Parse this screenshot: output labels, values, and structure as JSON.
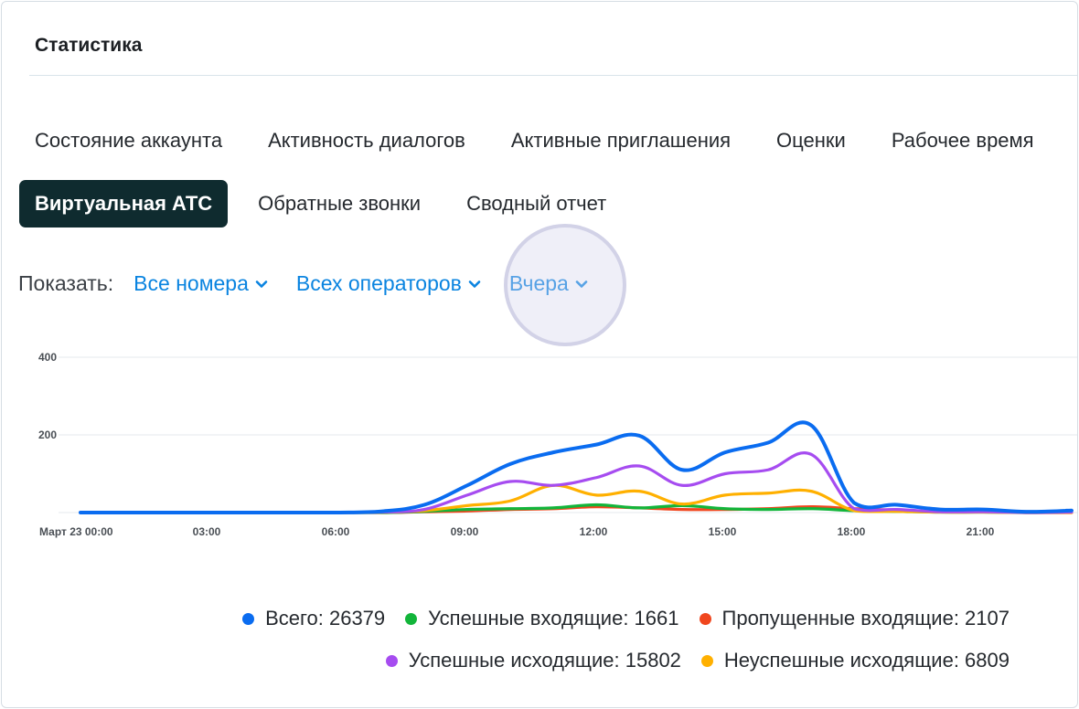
{
  "header": {
    "title": "Статистика"
  },
  "tabs_row1": [
    {
      "label": "Состояние аккаунта"
    },
    {
      "label": "Активность диалогов"
    },
    {
      "label": "Активные приглашения"
    },
    {
      "label": "Оценки"
    },
    {
      "label": "Рабочее время"
    }
  ],
  "tabs_row2": {
    "active": "Виртуальная АТС",
    "others": [
      {
        "label": "Обратные звонки"
      },
      {
        "label": "Сводный отчет"
      }
    ]
  },
  "filters": {
    "label": "Показать:",
    "numbers": "Все номера",
    "operators": "Всех операторов",
    "period": "Вчера"
  },
  "colors": {
    "total": "#0a6cf0",
    "in_ok": "#12b53a",
    "in_missed": "#f0461e",
    "out_ok": "#a64cf0",
    "out_fail": "#ffb000"
  },
  "legend": {
    "total": "Всего: 26379",
    "in_ok": "Успешные входящие: 1661",
    "in_missed": "Пропущенные входящие: 2107",
    "out_ok": "Успешные исходящие: 15802",
    "out_fail": "Неуспешные исходящие: 6809"
  },
  "chart_data": {
    "type": "line",
    "ylim": [
      0,
      400
    ],
    "y_ticks": [
      200,
      400
    ],
    "x": [
      0,
      1,
      2,
      3,
      4,
      5,
      6,
      7,
      8,
      9,
      10,
      11,
      12,
      13,
      14,
      15,
      16,
      17,
      18,
      19,
      20,
      21,
      22,
      23
    ],
    "x_ticks": [
      {
        "x": 0,
        "label": "Март 23 00:00"
      },
      {
        "x": 3,
        "label": "03:00"
      },
      {
        "x": 6,
        "label": "06:00"
      },
      {
        "x": 9,
        "label": "09:00"
      },
      {
        "x": 12,
        "label": "12:00"
      },
      {
        "x": 15,
        "label": "15:00"
      },
      {
        "x": 18,
        "label": "18:00"
      },
      {
        "x": 21,
        "label": "21:00"
      }
    ],
    "series": [
      {
        "name": "Всего: 26379",
        "key": "total",
        "values": [
          0,
          0,
          0,
          0,
          0,
          0,
          0,
          3,
          20,
          70,
          125,
          155,
          175,
          198,
          110,
          155,
          180,
          225,
          25,
          20,
          8,
          8,
          2,
          5
        ]
      },
      {
        "name": "Успешные исходящие: 15802",
        "key": "out_ok",
        "values": [
          0,
          0,
          0,
          0,
          0,
          0,
          0,
          1,
          8,
          45,
          80,
          70,
          90,
          120,
          70,
          100,
          110,
          150,
          10,
          8,
          2,
          2,
          0,
          1
        ]
      },
      {
        "name": "Неуспешные исходящие: 6809",
        "key": "out_fail",
        "values": [
          0,
          0,
          0,
          0,
          0,
          0,
          0,
          1,
          5,
          18,
          30,
          70,
          45,
          55,
          22,
          45,
          50,
          55,
          5,
          3,
          1,
          1,
          0,
          0
        ]
      },
      {
        "name": "Успешные входящие: 1661",
        "key": "in_ok",
        "values": [
          0,
          0,
          0,
          0,
          0,
          0,
          0,
          0,
          3,
          8,
          10,
          12,
          20,
          12,
          18,
          10,
          8,
          10,
          5,
          3,
          1,
          1,
          0,
          1
        ]
      },
      {
        "name": "Пропущенные входящие: 2107",
        "key": "in_missed",
        "values": [
          0,
          0,
          0,
          0,
          0,
          0,
          0,
          0,
          2,
          4,
          8,
          10,
          15,
          12,
          8,
          8,
          10,
          15,
          10,
          6,
          2,
          2,
          0,
          0
        ]
      }
    ]
  }
}
